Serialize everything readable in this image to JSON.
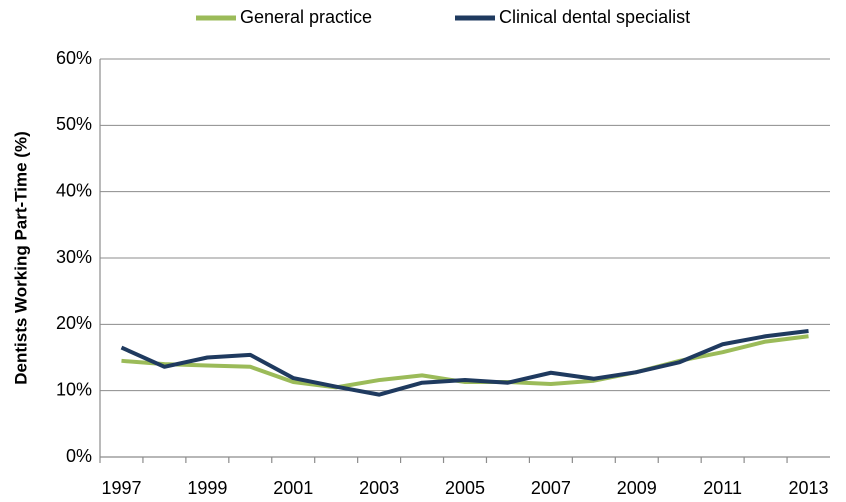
{
  "chart_data": {
    "type": "line",
    "y_label": "Dentists Working Part-Time (%)",
    "categories": [
      "1997",
      null,
      "1999",
      null,
      "2001",
      null,
      "2003",
      null,
      "2005",
      null,
      "2007",
      null,
      "2009",
      null,
      "2011",
      null,
      "2013"
    ],
    "series": [
      {
        "name": "General practice",
        "color": "#9bbb59",
        "values": [
          14.5,
          14.0,
          13.8,
          13.6,
          11.3,
          10.5,
          11.6,
          12.3,
          11.3,
          11.3,
          11.0,
          11.5,
          12.8,
          14.5,
          15.8,
          17.4,
          18.2
        ]
      },
      {
        "name": "Clinical dental specialist",
        "color": "#1f3a5f",
        "values": [
          16.5,
          13.6,
          15.0,
          15.4,
          11.9,
          10.6,
          9.4,
          11.2,
          11.6,
          11.2,
          12.7,
          11.8,
          12.8,
          14.3,
          17.0,
          18.2,
          19.0
        ]
      }
    ],
    "ylim": [
      0,
      60
    ],
    "yticks": [
      {
        "value": 0,
        "label": "0%"
      },
      {
        "value": 10,
        "label": "10%"
      },
      {
        "value": 20,
        "label": "20%"
      },
      {
        "value": 30,
        "label": "30%"
      },
      {
        "value": 40,
        "label": "40%"
      },
      {
        "value": 50,
        "label": "50%"
      },
      {
        "value": 60,
        "label": "60%"
      }
    ],
    "grid": true,
    "legend": "top"
  }
}
